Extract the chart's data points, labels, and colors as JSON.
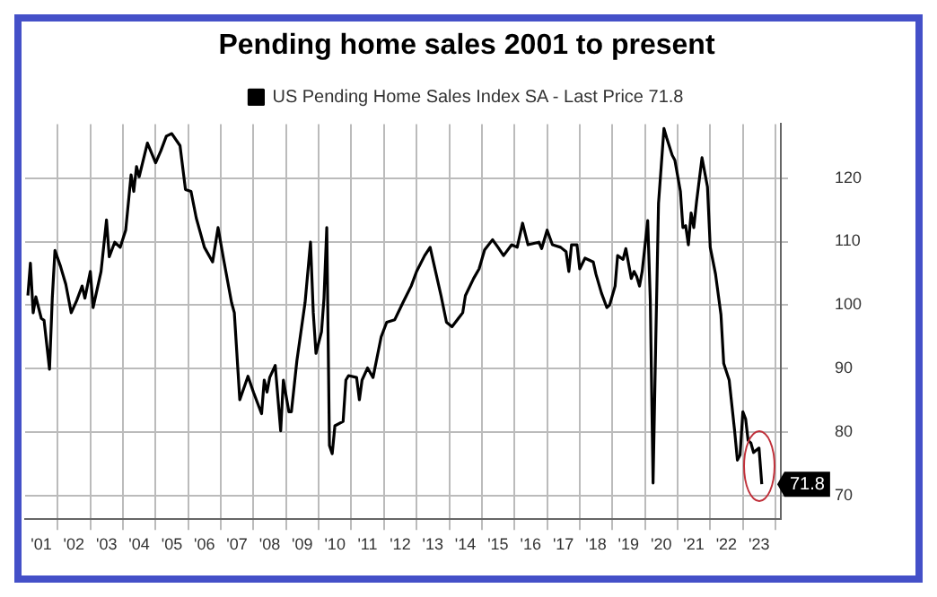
{
  "chart_data": {
    "type": "line",
    "title": "Pending home sales 2001 to present",
    "legend": "top",
    "grid": true,
    "marker": "none",
    "line_style": "solid",
    "xlim": [
      "2001-01",
      "2024-03"
    ],
    "ylim": [
      66.3,
      128.5
    ],
    "yticks": [
      70,
      80,
      90,
      100,
      110,
      120
    ],
    "xticks": [
      {
        "value": "2001-07",
        "label": "'01"
      },
      {
        "value": "2002-01",
        "label": null
      },
      {
        "value": "2002-07",
        "label": "'02"
      },
      {
        "value": "2003-01",
        "label": null
      },
      {
        "value": "2003-07",
        "label": "'03"
      },
      {
        "value": "2004-01",
        "label": null
      },
      {
        "value": "2004-07",
        "label": "'04"
      },
      {
        "value": "2005-01",
        "label": null
      },
      {
        "value": "2005-07",
        "label": "'05"
      },
      {
        "value": "2006-01",
        "label": null
      },
      {
        "value": "2006-07",
        "label": "'06"
      },
      {
        "value": "2007-01",
        "label": null
      },
      {
        "value": "2007-07",
        "label": "'07"
      },
      {
        "value": "2008-01",
        "label": null
      },
      {
        "value": "2008-07",
        "label": "'08"
      },
      {
        "value": "2009-01",
        "label": null
      },
      {
        "value": "2009-07",
        "label": "'09"
      },
      {
        "value": "2010-01",
        "label": null
      },
      {
        "value": "2010-07",
        "label": "'10"
      },
      {
        "value": "2011-01",
        "label": null
      },
      {
        "value": "2011-07",
        "label": "'11"
      },
      {
        "value": "2012-01",
        "label": null
      },
      {
        "value": "2012-07",
        "label": "'12"
      },
      {
        "value": "2013-01",
        "label": null
      },
      {
        "value": "2013-07",
        "label": "'13"
      },
      {
        "value": "2014-01",
        "label": null
      },
      {
        "value": "2014-07",
        "label": "'14"
      },
      {
        "value": "2015-01",
        "label": null
      },
      {
        "value": "2015-07",
        "label": "'15"
      },
      {
        "value": "2016-01",
        "label": null
      },
      {
        "value": "2016-07",
        "label": "'16"
      },
      {
        "value": "2017-01",
        "label": null
      },
      {
        "value": "2017-07",
        "label": "'17"
      },
      {
        "value": "2018-01",
        "label": null
      },
      {
        "value": "2018-07",
        "label": "'18"
      },
      {
        "value": "2019-01",
        "label": null
      },
      {
        "value": "2019-07",
        "label": "'19"
      },
      {
        "value": "2020-01",
        "label": null
      },
      {
        "value": "2020-07",
        "label": "'20"
      },
      {
        "value": "2021-01",
        "label": null
      },
      {
        "value": "2021-07",
        "label": "'21"
      },
      {
        "value": "2022-01",
        "label": null
      },
      {
        "value": "2022-07",
        "label": "'22"
      },
      {
        "value": "2023-01",
        "label": null
      },
      {
        "value": "2023-07",
        "label": "'23"
      },
      {
        "value": "2024-01",
        "label": null
      }
    ],
    "series": [
      {
        "name": "US Pending Home Sales Index SA - Last Price 71.8",
        "color": "#000000",
        "x": [
          "2001-02",
          "2001-03",
          "2001-04",
          "2001-05",
          "2001-07",
          "2001-08",
          "2001-10",
          "2001-11",
          "2001-12",
          "2002-02",
          "2002-04",
          "2002-06",
          "2002-08",
          "2002-10",
          "2002-11",
          "2003-01",
          "2003-02",
          "2003-05",
          "2003-07",
          "2003-08",
          "2003-10",
          "2003-12",
          "2004-02",
          "2004-04",
          "2004-05",
          "2004-06",
          "2004-07",
          "2004-10",
          "2005-01",
          "2005-03",
          "2005-05",
          "2005-07",
          "2005-10",
          "2005-12",
          "2006-02",
          "2006-04",
          "2006-07",
          "2006-10",
          "2006-12",
          "2007-02",
          "2007-05",
          "2007-06",
          "2007-08",
          "2007-11",
          "2008-01",
          "2008-04",
          "2008-05",
          "2008-06",
          "2008-07",
          "2008-09",
          "2008-11",
          "2008-12",
          "2009-02",
          "2009-03",
          "2009-05",
          "2009-06",
          "2009-08",
          "2009-10",
          "2009-11",
          "2009-12",
          "2010-02",
          "2010-03",
          "2010-04",
          "2010-05",
          "2010-06",
          "2010-07",
          "2010-10",
          "2010-11",
          "2010-12",
          "2011-03",
          "2011-04",
          "2011-05",
          "2011-07",
          "2011-09",
          "2011-12",
          "2012-02",
          "2012-05",
          "2012-08",
          "2012-11",
          "2013-01",
          "2013-04",
          "2013-06",
          "2013-08",
          "2013-10",
          "2013-12",
          "2014-02",
          "2014-06",
          "2014-07",
          "2014-10",
          "2014-12",
          "2015-02",
          "2015-05",
          "2015-07",
          "2015-09",
          "2015-12",
          "2016-02",
          "2016-04",
          "2016-06",
          "2016-10",
          "2016-11",
          "2017-01",
          "2017-03",
          "2017-06",
          "2017-08",
          "2017-09",
          "2017-10",
          "2017-12",
          "2018-01",
          "2018-03",
          "2018-06",
          "2018-07",
          "2018-09",
          "2018-11",
          "2018-12",
          "2019-02",
          "2019-03",
          "2019-05",
          "2019-06",
          "2019-08",
          "2019-09",
          "2019-10",
          "2019-11",
          "2019-12",
          "2020-02",
          "2020-03",
          "2020-04",
          "2020-05",
          "2020-06",
          "2020-08",
          "2020-09",
          "2020-11",
          "2020-12",
          "2021-02",
          "2021-03",
          "2021-04",
          "2021-05",
          "2021-06",
          "2021-07",
          "2021-08",
          "2021-10",
          "2021-12",
          "2022-01",
          "2022-03",
          "2022-05",
          "2022-06",
          "2022-08",
          "2022-10",
          "2022-11",
          "2022-12",
          "2023-01",
          "2023-02",
          "2023-03",
          "2023-04",
          "2023-05",
          "2023-07",
          "2023-08"
        ],
        "values": [
          101.5,
          106.6,
          98.8,
          101.3,
          97.9,
          97.6,
          89.9,
          101.1,
          108.6,
          106.1,
          103.3,
          98.8,
          100.7,
          103,
          101.1,
          105.3,
          99.6,
          105.3,
          113.4,
          107.6,
          109.9,
          109.1,
          111.8,
          120.5,
          117.9,
          121.8,
          120.2,
          125.5,
          122.4,
          124.3,
          126.6,
          127,
          125.1,
          118.2,
          117.9,
          113.7,
          109.1,
          106.8,
          112.2,
          107.2,
          100.4,
          98.8,
          85.1,
          88.8,
          86.3,
          82.9,
          88.2,
          86.3,
          88.6,
          90.5,
          80.2,
          88.2,
          83.2,
          83.2,
          91.2,
          94.3,
          100.4,
          109.9,
          98.8,
          92.4,
          95.8,
          101.1,
          112.2,
          77.9,
          76.6,
          81,
          81.7,
          88.2,
          88.9,
          88.6,
          85.1,
          88.2,
          90.1,
          88.6,
          95,
          97.3,
          97.7,
          100.4,
          103,
          105.3,
          107.8,
          109.1,
          105.3,
          101.5,
          97.3,
          96.6,
          98.8,
          101.5,
          104.2,
          105.7,
          108.7,
          110.3,
          109.1,
          107.8,
          109.5,
          109.1,
          112.9,
          109.5,
          109.9,
          108.9,
          111.8,
          109.5,
          109.1,
          108.4,
          105.3,
          109.5,
          109.5,
          105.7,
          107.4,
          106.8,
          104.9,
          101.9,
          99.6,
          100,
          103,
          107.8,
          107.2,
          108.9,
          104.2,
          105.3,
          104.5,
          103,
          105.3,
          113.3,
          100.7,
          72,
          94.3,
          116,
          127.8,
          126.3,
          123.6,
          122.8,
          117.9,
          112.2,
          112.5,
          109.5,
          114.5,
          112.2,
          116.3,
          123.2,
          118.6,
          109.1,
          104.9,
          98.5,
          90.8,
          88.2,
          80.2,
          75.6,
          76.4,
          83.2,
          82.1,
          78.7,
          78.3,
          76.8,
          77.5,
          71.8
        ],
        "value_labels": [
          null,
          null,
          null,
          null,
          null,
          null,
          null,
          null,
          null,
          null,
          null,
          null,
          null,
          null,
          null,
          null,
          null,
          null,
          null,
          null,
          null,
          null,
          null,
          null,
          null,
          null,
          null,
          null,
          null,
          null,
          null,
          null,
          null,
          null,
          null,
          null,
          null,
          null,
          null,
          null,
          null,
          null,
          null,
          null,
          null,
          null,
          null,
          null,
          null,
          null,
          null,
          null,
          null,
          null,
          null,
          null,
          null,
          null,
          null,
          null,
          null,
          null,
          null,
          null,
          null,
          null,
          null,
          null,
          null,
          null,
          null,
          null,
          null,
          null,
          null,
          null,
          null,
          null,
          null,
          null,
          null,
          null,
          null,
          null,
          null,
          null,
          null,
          null,
          null,
          null,
          null,
          null,
          null,
          null,
          null,
          null,
          null,
          null,
          null,
          null,
          null,
          null,
          null,
          null,
          null,
          null,
          null,
          null,
          null,
          null,
          null,
          null,
          null,
          null,
          null,
          null,
          null,
          null,
          null,
          null,
          null,
          null,
          null,
          null,
          null,
          null,
          null,
          null,
          null,
          null,
          null,
          null,
          null,
          null,
          null,
          null,
          null,
          null,
          null,
          null,
          null,
          null,
          null,
          null,
          null,
          null,
          null,
          null,
          null,
          null,
          null,
          null,
          null,
          null,
          null,
          "71.8"
        ]
      }
    ]
  }
}
